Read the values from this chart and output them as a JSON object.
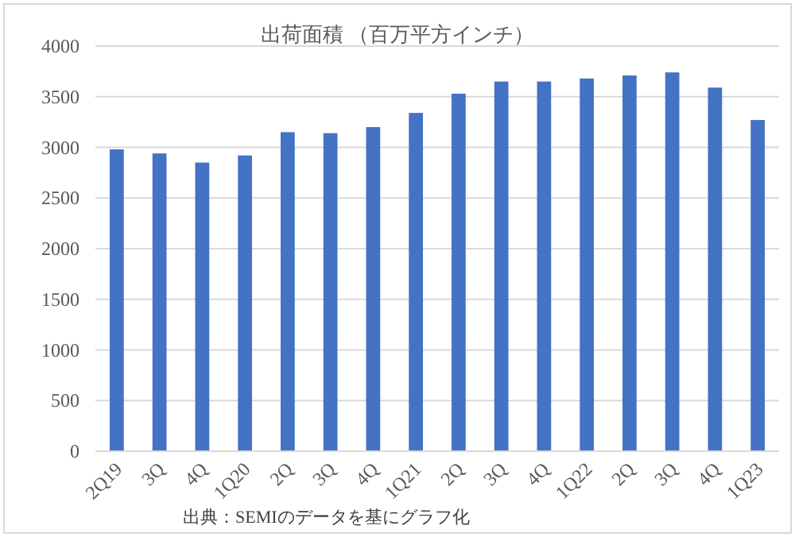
{
  "chart_data": {
    "type": "bar",
    "title": "出荷面積 （百万平方インチ）",
    "categories": [
      "2Q19",
      "3Q",
      "4Q",
      "1Q20",
      "2Q",
      "3Q",
      "4Q",
      "1Q21",
      "2Q",
      "3Q",
      "4Q",
      "1Q22",
      "2Q",
      "3Q",
      "4Q",
      "1Q23"
    ],
    "values": [
      2980,
      2940,
      2850,
      2920,
      3150,
      3140,
      3200,
      3340,
      3530,
      3650,
      3650,
      3680,
      3710,
      3740,
      3590,
      3270
    ],
    "color": "#4472c4",
    "ylim": [
      0,
      4000
    ],
    "yticks": [
      0,
      500,
      1000,
      1500,
      2000,
      2500,
      3000,
      3500,
      4000
    ],
    "grid": "y",
    "annotations": [
      "出典：SEMIのデータを基にグラフ化"
    ]
  }
}
